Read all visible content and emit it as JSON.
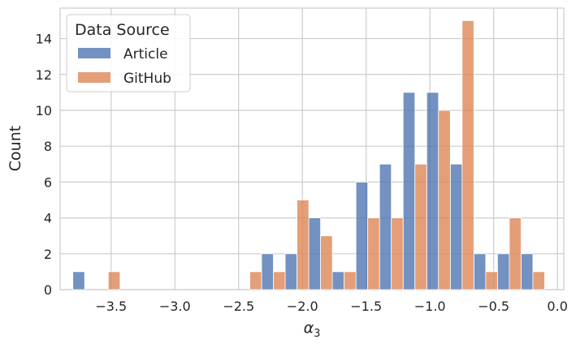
{
  "chart_data": {
    "type": "bar",
    "xlabel_base": "α",
    "xlabel_sub": "3",
    "ylabel": "Count",
    "xlim": [
      -3.9,
      0.05
    ],
    "ylim": [
      0,
      15.7
    ],
    "x_ticks": [
      -3.5,
      -3.0,
      -2.5,
      -2.0,
      -1.5,
      -1.0,
      -0.5,
      0.0
    ],
    "x_tick_labels": [
      "−3.5",
      "−3.0",
      "−2.5",
      "−2.0",
      "−1.5",
      "−1.0",
      "−0.5",
      "0.0"
    ],
    "y_ticks": [
      0,
      2,
      4,
      6,
      8,
      10,
      12,
      14
    ],
    "y_tick_labels": [
      "0",
      "2",
      "4",
      "6",
      "8",
      "10",
      "12",
      "14"
    ],
    "grid": true,
    "legend": {
      "title": "Data Source",
      "placement": "top-left"
    },
    "bin_width": 0.185,
    "bin_lefts": [
      -3.8,
      -3.615,
      -3.43,
      -3.245,
      -3.06,
      -2.875,
      -2.69,
      -2.505,
      -2.32,
      -2.135,
      -1.95,
      -1.765,
      -1.58,
      -1.395,
      -1.21,
      -1.025,
      -0.84,
      -0.655,
      -0.47,
      -0.285
    ],
    "series": [
      {
        "name": "Article",
        "color": "#4c72b0",
        "values": [
          1,
          0,
          0,
          0,
          0,
          0,
          0,
          0,
          2,
          2,
          4,
          1,
          6,
          7,
          11,
          11,
          7,
          2,
          2,
          2
        ]
      },
      {
        "name": "GitHub",
        "color": "#dd8452",
        "values": [
          0,
          1,
          0,
          0,
          0,
          0,
          0,
          1,
          1,
          5,
          3,
          1,
          4,
          4,
          7,
          10,
          15,
          1,
          4,
          1
        ]
      }
    ]
  }
}
